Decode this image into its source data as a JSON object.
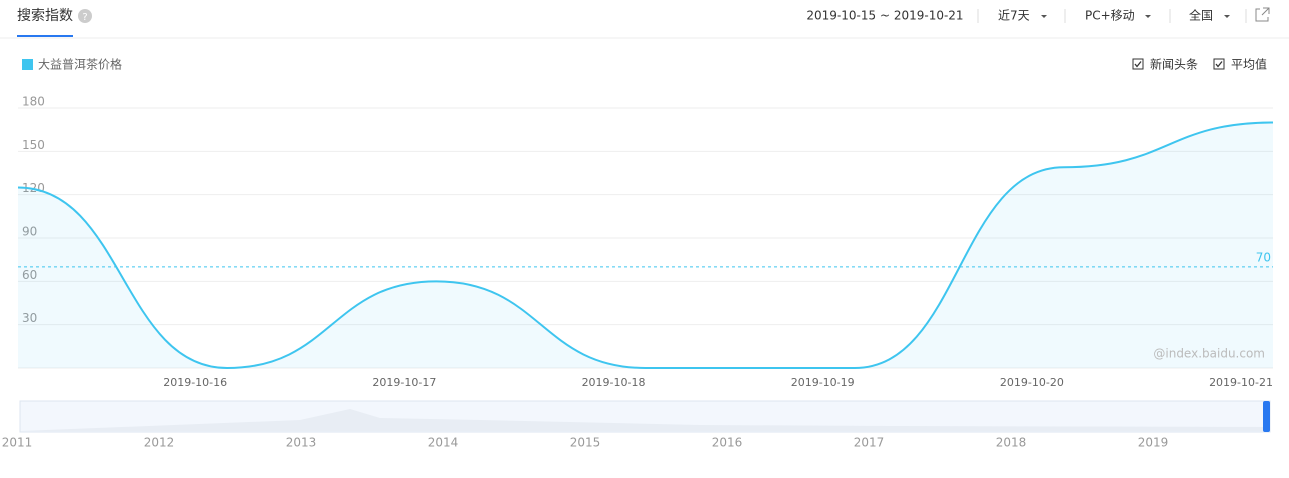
{
  "header": {
    "title": "搜索指数",
    "date_range": "2019-10-15 ~ 2019-10-21",
    "period": "近7天",
    "device": "PC+移动",
    "region": "全国"
  },
  "chart_data": {
    "type": "line",
    "categories": [
      null,
      "2019-10-16",
      "2019-10-17",
      "2019-10-18",
      "2019-10-19",
      "2019-10-20",
      "2019-10-21"
    ],
    "series": [
      {
        "name": "大益普洱茶价格",
        "color": "#3ec5ef",
        "values": [
          125,
          0,
          60,
          0,
          0,
          139,
          170
        ]
      }
    ],
    "ylim": [
      0,
      180
    ],
    "yticks": [
      30,
      60,
      90,
      120,
      150,
      180
    ],
    "grid": true,
    "area": true,
    "average": 70,
    "options": [
      "新闻头条",
      "平均值"
    ],
    "watermark": "@index.baidu.com"
  },
  "timeline": {
    "years": [
      2011,
      2012,
      2013,
      2014,
      2015,
      2016,
      2017,
      2018,
      2019
    ]
  }
}
